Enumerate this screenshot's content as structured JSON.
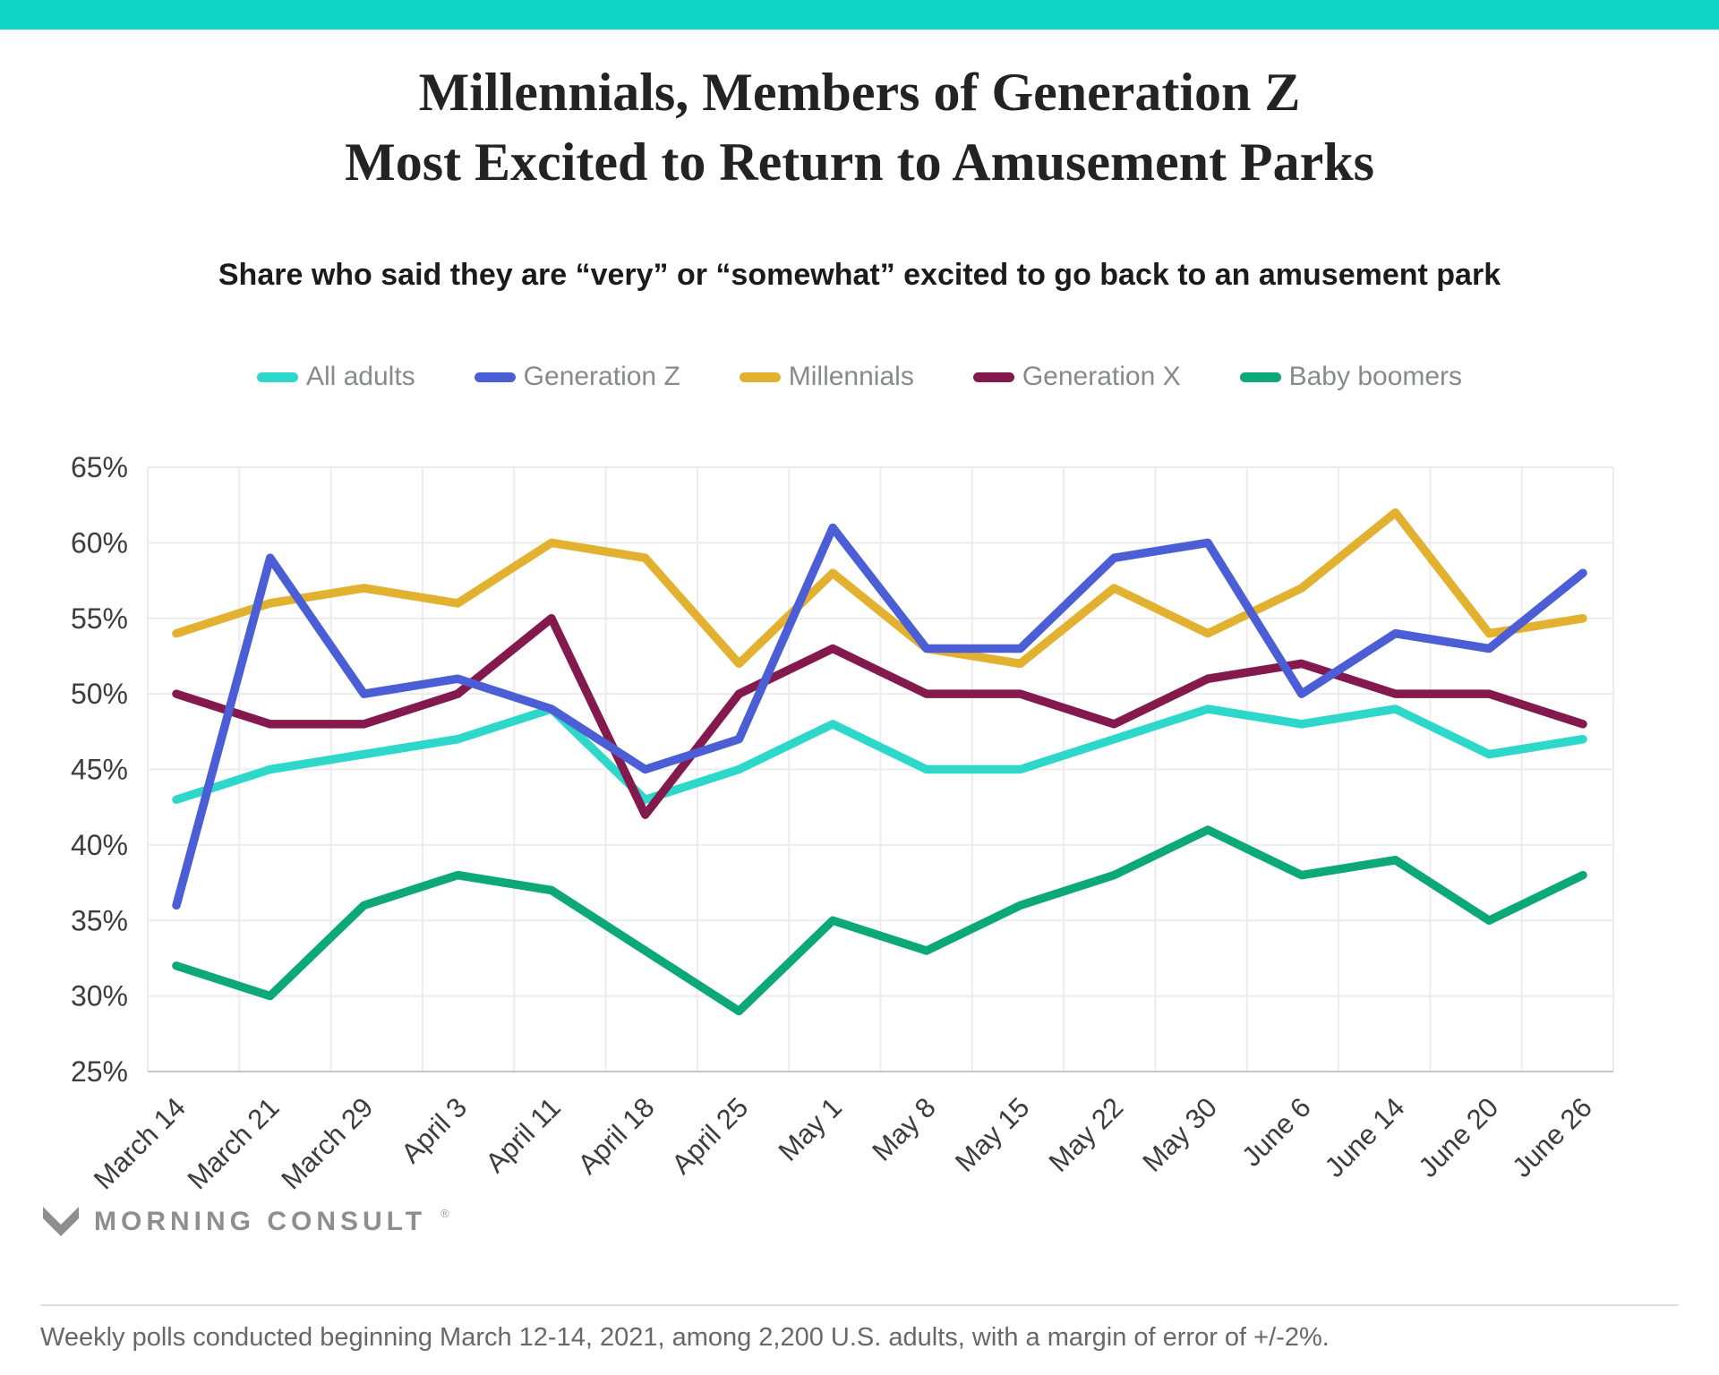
{
  "page": {
    "title_line1": "Millennials, Members of Generation Z",
    "title_line2": "Most Excited to Return to Amusement Parks",
    "subtitle": "Share who said they are “very” or “somewhat” excited to go back to an amusement park",
    "footer_note": "Weekly polls conducted beginning March 12-14, 2021, among 2,200 U.S. adults, with a margin of error of +/-2%.",
    "logo_text": "MORNING CONSULT",
    "logo_reg": "®",
    "accent_color": "#11d5c7",
    "grid_color": "#ececec",
    "axis_color": "#c6c6c6",
    "tick_color": "#3d3d3d",
    "legend_text_color": "#87898c"
  },
  "chart_data": {
    "type": "line",
    "title": "Millennials, Members of Generation Z Most Excited to Return to Amusement Parks",
    "subtitle": "Share who said they are “very” or “somewhat” excited to go back to an amusement park",
    "categories": [
      "March 14",
      "March 21",
      "March 29",
      "April 3",
      "April 11",
      "April 18",
      "April 25",
      "May 1",
      "May 8",
      "May 15",
      "May 22",
      "May 30",
      "June 6",
      "June 14",
      "June 20",
      "June 26"
    ],
    "series": [
      {
        "name": "All adults",
        "color": "#2dd8ca",
        "values": [
          43,
          45,
          46,
          47,
          49,
          43,
          45,
          48,
          45,
          45,
          47,
          49,
          48,
          49,
          46,
          47
        ]
      },
      {
        "name": "Generation Z",
        "color": "#4c5ed6",
        "values": [
          36,
          59,
          50,
          51,
          49,
          45,
          47,
          61,
          53,
          53,
          59,
          60,
          50,
          54,
          53,
          58
        ]
      },
      {
        "name": "Millennials",
        "color": "#e2b12f",
        "values": [
          54,
          56,
          57,
          56,
          60,
          59,
          52,
          58,
          53,
          52,
          57,
          54,
          57,
          62,
          54,
          55
        ]
      },
      {
        "name": "Generation X",
        "color": "#84194d",
        "values": [
          50,
          48,
          48,
          50,
          55,
          42,
          50,
          53,
          50,
          50,
          48,
          51,
          52,
          50,
          50,
          48
        ]
      },
      {
        "name": "Baby boomers",
        "color": "#0da878",
        "values": [
          32,
          30,
          36,
          38,
          37,
          33,
          29,
          35,
          33,
          36,
          38,
          41,
          38,
          39,
          35,
          38
        ]
      }
    ],
    "ylim": [
      25,
      65
    ],
    "ytick_step": 5,
    "ytick_suffix": "%",
    "xlabel": "",
    "ylabel": "",
    "grid": true,
    "legend_position": "top",
    "x_tick_rotation": -45
  }
}
